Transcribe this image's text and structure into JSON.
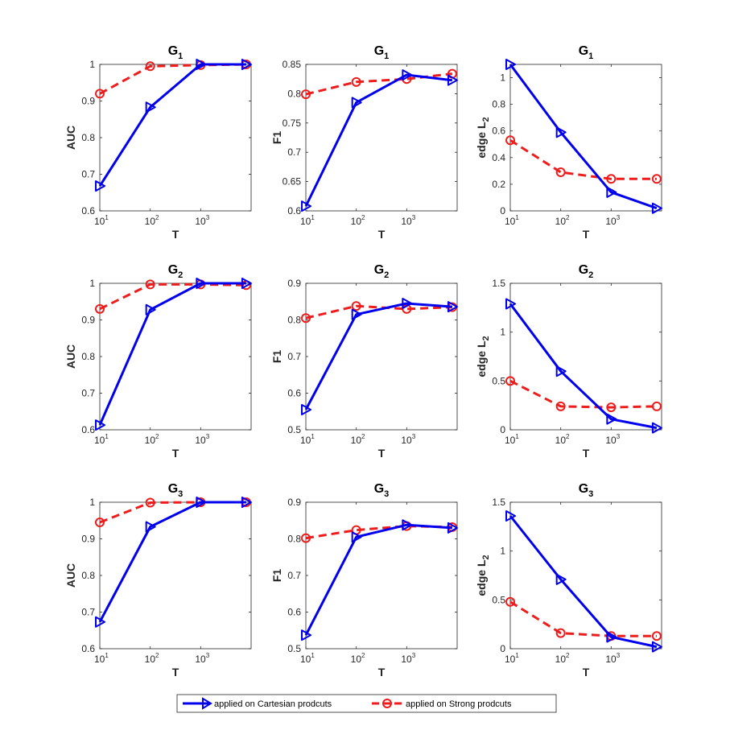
{
  "colors": {
    "cartesian": "#0000ee",
    "strong": "#ee1c1c",
    "axis": "#262626"
  },
  "legend": {
    "items": [
      {
        "label": "applied on Cartesian prodcuts",
        "series": "cartesian"
      },
      {
        "label": "applied on Strong prodcuts",
        "series": "strong"
      }
    ]
  },
  "chart_data": [
    {
      "type": "line",
      "title": "G",
      "title_sub": "1",
      "xlabel": "T",
      "ylabel": "AUC",
      "ylabel_sub": "",
      "x_log": true,
      "x": [
        10,
        100,
        1000,
        8000
      ],
      "xlim": [
        10,
        10000
      ],
      "ylim": [
        0.6,
        1
      ],
      "yticks": [
        "0.6",
        "0.7",
        "0.8",
        "0.9",
        "1"
      ],
      "series": [
        {
          "key": "cartesian",
          "values": [
            0.668,
            0.883,
            1.0,
            1.0
          ]
        },
        {
          "key": "strong",
          "values": [
            0.92,
            0.995,
            0.998,
            1.0
          ]
        }
      ]
    },
    {
      "type": "line",
      "title": "G",
      "title_sub": "1",
      "xlabel": "T",
      "ylabel": "F1",
      "ylabel_sub": "",
      "x_log": true,
      "x": [
        10,
        100,
        1000,
        8000
      ],
      "xlim": [
        10,
        10000
      ],
      "ylim": [
        0.6,
        0.85
      ],
      "yticks": [
        "0.6",
        "0.65",
        "0.7",
        "0.75",
        "0.8",
        "0.85"
      ],
      "series": [
        {
          "key": "cartesian",
          "values": [
            0.608,
            0.785,
            0.832,
            0.823
          ]
        },
        {
          "key": "strong",
          "values": [
            0.799,
            0.82,
            0.825,
            0.834
          ]
        }
      ]
    },
    {
      "type": "line",
      "title": "G",
      "title_sub": "1",
      "xlabel": "T",
      "ylabel": "edge L",
      "ylabel_sub": "2",
      "x_log": true,
      "x": [
        10,
        100,
        1000,
        8000
      ],
      "xlim": [
        10,
        10000
      ],
      "ylim": [
        0,
        1.1
      ],
      "yticks": [
        "0",
        "0.2",
        "0.4",
        "0.6",
        "0.8",
        "1"
      ],
      "series": [
        {
          "key": "cartesian",
          "values": [
            1.1,
            0.59,
            0.14,
            0.02
          ]
        },
        {
          "key": "strong",
          "values": [
            0.53,
            0.29,
            0.24,
            0.24
          ]
        }
      ]
    },
    {
      "type": "line",
      "title": "G",
      "title_sub": "2",
      "xlabel": "T",
      "ylabel": "AUC",
      "ylabel_sub": "",
      "x_log": true,
      "x": [
        10,
        100,
        1000,
        8000
      ],
      "xlim": [
        10,
        10000
      ],
      "ylim": [
        0.6,
        1
      ],
      "yticks": [
        "0.6",
        "0.7",
        "0.8",
        "0.9",
        "1"
      ],
      "series": [
        {
          "key": "cartesian",
          "values": [
            0.613,
            0.928,
            1.0,
            1.0
          ]
        },
        {
          "key": "strong",
          "values": [
            0.93,
            0.997,
            0.997,
            0.995
          ]
        }
      ]
    },
    {
      "type": "line",
      "title": "G",
      "title_sub": "2",
      "xlabel": "T",
      "ylabel": "F1",
      "ylabel_sub": "",
      "x_log": true,
      "x": [
        10,
        100,
        1000,
        8000
      ],
      "xlim": [
        10,
        10000
      ],
      "ylim": [
        0.5,
        0.9
      ],
      "yticks": [
        "0.5",
        "0.6",
        "0.7",
        "0.8",
        "0.9"
      ],
      "series": [
        {
          "key": "cartesian",
          "values": [
            0.555,
            0.815,
            0.845,
            0.836
          ]
        },
        {
          "key": "strong",
          "values": [
            0.805,
            0.838,
            0.83,
            0.835
          ]
        }
      ]
    },
    {
      "type": "line",
      "title": "G",
      "title_sub": "2",
      "xlabel": "T",
      "ylabel": "edge L",
      "ylabel_sub": "2",
      "x_log": true,
      "x": [
        10,
        100,
        1000,
        8000
      ],
      "xlim": [
        10,
        10000
      ],
      "ylim": [
        0,
        1.5
      ],
      "yticks": [
        "0",
        "0.5",
        "1",
        "1.5"
      ],
      "series": [
        {
          "key": "cartesian",
          "values": [
            1.29,
            0.6,
            0.11,
            0.02
          ]
        },
        {
          "key": "strong",
          "values": [
            0.5,
            0.24,
            0.23,
            0.24
          ]
        }
      ]
    },
    {
      "type": "line",
      "title": "G",
      "title_sub": "3",
      "xlabel": "T",
      "ylabel": "AUC",
      "ylabel_sub": "",
      "x_log": true,
      "x": [
        10,
        100,
        1000,
        8000
      ],
      "xlim": [
        10,
        10000
      ],
      "ylim": [
        0.6,
        1
      ],
      "yticks": [
        "0.6",
        "0.7",
        "0.8",
        "0.9",
        "1"
      ],
      "series": [
        {
          "key": "cartesian",
          "values": [
            0.673,
            0.933,
            1.0,
            1.0
          ]
        },
        {
          "key": "strong",
          "values": [
            0.945,
            0.999,
            1.0,
            1.0
          ]
        }
      ]
    },
    {
      "type": "line",
      "title": "G",
      "title_sub": "3",
      "xlabel": "T",
      "ylabel": "F1",
      "ylabel_sub": "",
      "x_log": true,
      "x": [
        10,
        100,
        1000,
        8000
      ],
      "xlim": [
        10,
        10000
      ],
      "ylim": [
        0.5,
        0.9
      ],
      "yticks": [
        "0.5",
        "0.6",
        "0.7",
        "0.8",
        "0.9"
      ],
      "series": [
        {
          "key": "cartesian",
          "values": [
            0.537,
            0.805,
            0.838,
            0.83
          ]
        },
        {
          "key": "strong",
          "values": [
            0.802,
            0.824,
            0.835,
            0.832
          ]
        }
      ]
    },
    {
      "type": "line",
      "title": "G",
      "title_sub": "3",
      "xlabel": "T",
      "ylabel": "edge L",
      "ylabel_sub": "2",
      "x_log": true,
      "x": [
        10,
        100,
        1000,
        8000
      ],
      "xlim": [
        10,
        10000
      ],
      "ylim": [
        0,
        1.5
      ],
      "yticks": [
        "0",
        "0.5",
        "1",
        "1.5"
      ],
      "series": [
        {
          "key": "cartesian",
          "values": [
            1.36,
            0.71,
            0.12,
            0.02
          ]
        },
        {
          "key": "strong",
          "values": [
            0.48,
            0.16,
            0.13,
            0.13
          ]
        }
      ]
    }
  ]
}
